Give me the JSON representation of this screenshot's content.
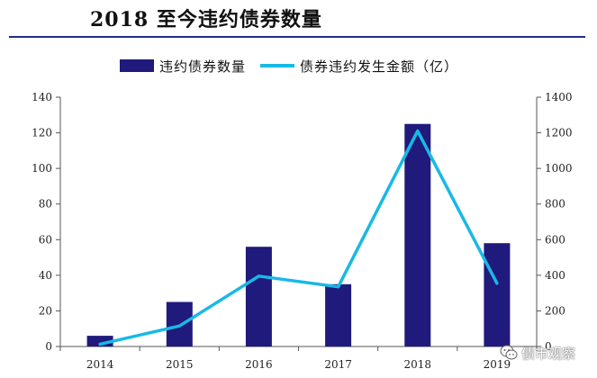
{
  "page": {
    "title": "2018 至今违约债券数量",
    "watermark": "债市观察",
    "watermark_icon": "wechat-icon"
  },
  "colors": {
    "bar": "#1f1a7c",
    "line": "#18b9e6",
    "axis": "#555555",
    "title_rule": "#1f2f86"
  },
  "chart_data": {
    "type": "bar",
    "categories": [
      "2014",
      "2015",
      "2016",
      "2017",
      "2018",
      "2019"
    ],
    "series": [
      {
        "name": "违约债券数量",
        "kind": "bar",
        "axis": "left",
        "values": [
          6,
          25,
          56,
          35,
          125,
          58
        ]
      },
      {
        "name": "债券违约发生金额（亿）",
        "kind": "line",
        "axis": "right",
        "values": [
          13,
          115,
          395,
          335,
          1210,
          355
        ]
      }
    ],
    "ylim_left": [
      0,
      140
    ],
    "yticks_left": [
      0,
      20,
      40,
      60,
      80,
      100,
      120,
      140
    ],
    "ylim_right": [
      0,
      1400
    ],
    "yticks_right": [
      0,
      200,
      400,
      600,
      800,
      1000,
      1200,
      1400
    ],
    "legend_position": "top",
    "grid": false
  }
}
